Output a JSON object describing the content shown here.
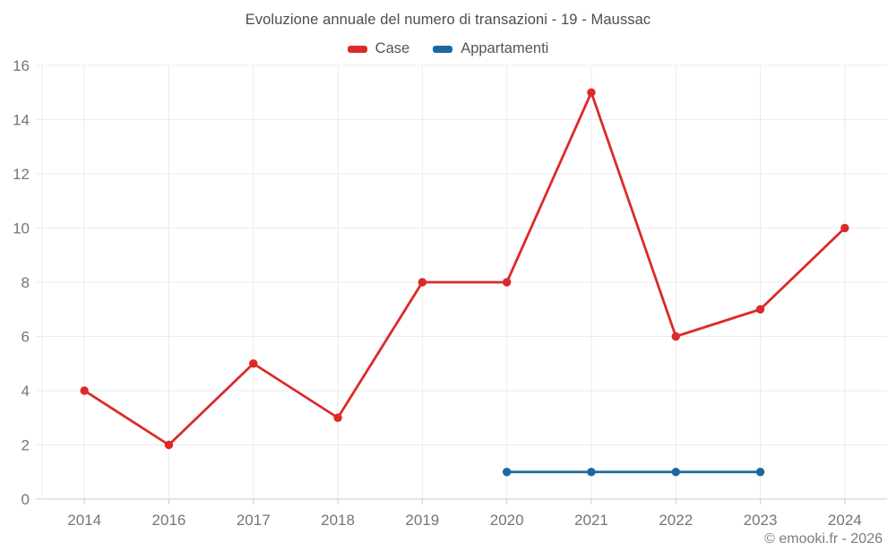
{
  "chart_data": {
    "type": "line",
    "title": "Evoluzione annuale del numero di transazioni - 19 - Maussac",
    "categories": [
      "2014",
      "2016",
      "2017",
      "2018",
      "2019",
      "2020",
      "2021",
      "2022",
      "2023",
      "2024"
    ],
    "series": [
      {
        "name": "Case",
        "color": "#dc2a2a",
        "values": [
          4,
          2,
          5,
          3,
          8,
          8,
          15,
          6,
          7,
          10
        ]
      },
      {
        "name": "Appartamenti",
        "color": "#19699f",
        "values": [
          null,
          null,
          null,
          null,
          null,
          1,
          1,
          1,
          1,
          null
        ]
      }
    ],
    "xlabel": "",
    "ylabel": "",
    "ylim": [
      0,
      16
    ],
    "yticks": [
      0,
      2,
      4,
      6,
      8,
      10,
      12,
      14,
      16
    ],
    "grid": true,
    "legend_position": "top",
    "footer": "© emooki.fr - 2026"
  },
  "colors": {
    "gridline": "#ebebeb",
    "axis_line": "#cccccc",
    "tick_label": "#757575"
  }
}
